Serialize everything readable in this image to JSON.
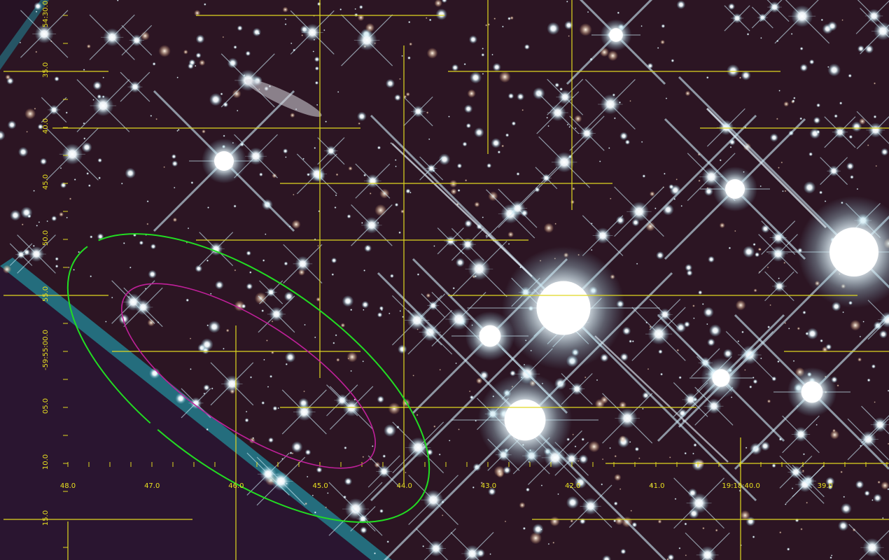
{
  "x_axis_labels": [
    "48.0",
    "47.0",
    "46.0",
    "45.0",
    "44.0",
    "43.0",
    "42.0",
    "41.0",
    "19:18:40.0",
    "39.0"
  ],
  "y_axis_labels": [
    "54:30.0",
    "35.0",
    "40.0",
    "45.0",
    "50.0",
    "55.0",
    "-59:55:00.0",
    "05.0",
    "10.0",
    "15.0"
  ]
}
